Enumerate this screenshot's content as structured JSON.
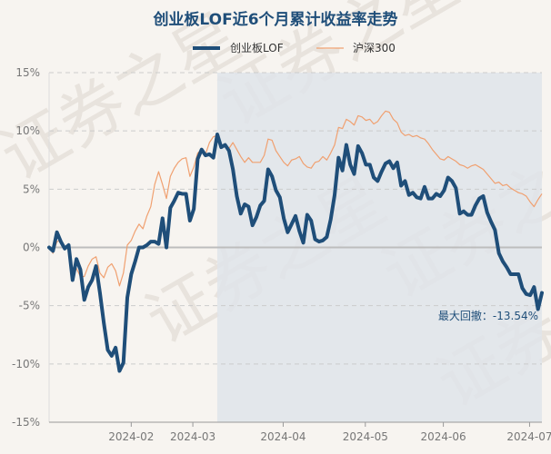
{
  "chart_data": {
    "type": "line",
    "title": "创业板LOF近6个月累计收益率走势",
    "ylabel": "",
    "xlabel": "",
    "ylim": [
      -15,
      15
    ],
    "yticks": [
      15,
      10,
      5,
      0,
      -5,
      -10,
      -15
    ],
    "ytick_labels": [
      "15%",
      "10%",
      "5%",
      "0%",
      "-5%",
      "-10%",
      "-15%"
    ],
    "xticks": [
      {
        "label": "2024-02",
        "index": 20
      },
      {
        "label": "2024-03",
        "index": 35
      },
      {
        "label": "2024-04",
        "index": 57
      },
      {
        "label": "2024-05",
        "index": 77
      },
      {
        "label": "2024-06",
        "index": 96
      },
      {
        "label": "2024-07",
        "index": 117
      }
    ],
    "num_points": 121,
    "grid": true,
    "legend": "top",
    "series": [
      {
        "name": "创业板LOF",
        "color": "#1f4e79",
        "values": [
          0.0,
          -0.3,
          1.3,
          0.5,
          -0.1,
          0.2,
          -2.8,
          -1.0,
          -1.9,
          -4.5,
          -3.4,
          -2.8,
          -1.6,
          -3.9,
          -6.5,
          -8.8,
          -9.3,
          -8.6,
          -10.6,
          -9.9,
          -4.3,
          -2.3,
          -1.2,
          0.0,
          0.0,
          0.2,
          0.5,
          0.5,
          0.3,
          2.5,
          0.0,
          3.4,
          4.0,
          4.7,
          4.6,
          4.6,
          2.3,
          3.3,
          7.6,
          8.4,
          7.9,
          8.0,
          7.7,
          9.7,
          8.6,
          8.8,
          8.3,
          6.7,
          4.4,
          2.9,
          3.7,
          3.5,
          1.9,
          2.6,
          3.6,
          4.0,
          6.7,
          6.1,
          4.9,
          4.3,
          2.5,
          1.3,
          2.0,
          2.7,
          1.4,
          0.4,
          2.8,
          2.3,
          0.7,
          0.5,
          0.6,
          0.9,
          2.4,
          4.5,
          7.7,
          6.6,
          8.8,
          7.1,
          6.3,
          8.7,
          8.1,
          7.1,
          7.1,
          6.0,
          5.7,
          6.5,
          7.2,
          7.4,
          6.8,
          7.3,
          5.3,
          5.7,
          4.5,
          4.7,
          4.3,
          4.2,
          5.2,
          4.2,
          4.2,
          4.6,
          4.4,
          4.9,
          6.0,
          5.7,
          5.1,
          2.9,
          3.1,
          2.8,
          2.8,
          3.6,
          4.2,
          4.4,
          3.0,
          2.2,
          1.5,
          -0.5,
          -1.2,
          -1.7,
          -2.3,
          -2.3,
          -2.3
        ],
        "extra_tail": [
          -3.5,
          -4.0,
          -4.1,
          -3.4,
          -5.3,
          -3.9
        ]
      },
      {
        "name": "沪深300",
        "color": "#f0a070",
        "values": [
          0.0,
          -0.5,
          0.5,
          0.6,
          0.0,
          0.2,
          -2.4,
          -1.8,
          -2.5,
          -2.5,
          -1.6,
          -1.0,
          -0.8,
          -2.2,
          -2.6,
          -1.7,
          -1.4,
          -2.0,
          -3.3,
          -2.2,
          0.2,
          0.6,
          1.4,
          2.0,
          1.6,
          2.7,
          3.5,
          5.4,
          6.5,
          5.4,
          4.2,
          6.1,
          6.8,
          7.3,
          7.6,
          7.7,
          6.1,
          6.9,
          8.1,
          8.4,
          8.0,
          9.0,
          9.5,
          9.6,
          8.7,
          8.9,
          8.5,
          9.0,
          8.4,
          7.8,
          7.3,
          7.7,
          7.3,
          7.3,
          7.3,
          7.9,
          9.3,
          9.2,
          8.3,
          7.8,
          7.3,
          7.0,
          7.5,
          7.6,
          7.8,
          7.2,
          6.9,
          6.8,
          7.3,
          7.4,
          7.8,
          7.5,
          8.1,
          8.8,
          10.3,
          10.2,
          11.0,
          10.8,
          10.5,
          11.3,
          11.2,
          10.9,
          11.0,
          10.6,
          10.8,
          11.3,
          11.7,
          11.6,
          11.0,
          10.7,
          9.9,
          9.6,
          9.7,
          9.5,
          9.6,
          9.4,
          9.3,
          8.9,
          8.4,
          8.0,
          7.6,
          7.5,
          7.8,
          7.6,
          7.4,
          7.1,
          7.0,
          6.8,
          7.0,
          7.1,
          6.9,
          6.7,
          6.3,
          5.9,
          5.5,
          5.6,
          5.3,
          5.4,
          5.1,
          4.9,
          4.7
        ],
        "extra_tail": [
          4.6,
          4.4,
          3.9,
          3.5,
          4.1,
          4.6
        ]
      }
    ],
    "shaded_region": {
      "start_index": 43,
      "label": "最大回撤：-13.54%"
    },
    "annotations": [
      "最大回撤：-13.54%"
    ]
  },
  "watermark": "证券之星"
}
